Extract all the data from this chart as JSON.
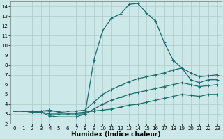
{
  "bg_color": "#cce8e8",
  "grid_color": "#aacccc",
  "line_color": "#1a6b6b",
  "xlabel": "Humidex (Indice chaleur)",
  "xlim": [
    -0.5,
    23.5
  ],
  "ylim": [
    2,
    14.5
  ],
  "xticks": [
    0,
    1,
    2,
    3,
    4,
    5,
    6,
    7,
    8,
    9,
    10,
    11,
    12,
    13,
    14,
    15,
    16,
    17,
    18,
    19,
    20,
    21,
    22,
    23
  ],
  "yticks": [
    2,
    3,
    4,
    5,
    6,
    7,
    8,
    9,
    10,
    11,
    12,
    13,
    14
  ],
  "curve_top": {
    "x": [
      0,
      1,
      2,
      3,
      4,
      5,
      6,
      7,
      8,
      9,
      10,
      11,
      12,
      13,
      14,
      15,
      16,
      17,
      18,
      19,
      20,
      21,
      22,
      23
    ],
    "y": [
      3.3,
      3.3,
      3.2,
      3.2,
      2.8,
      2.7,
      2.7,
      2.7,
      3.0,
      8.5,
      11.5,
      12.8,
      13.2,
      14.2,
      14.3,
      13.3,
      12.5,
      10.3,
      8.5,
      7.7,
      6.5,
      6.2,
      6.5,
      6.5
    ]
  },
  "curve_mid_upper": {
    "x": [
      0,
      1,
      2,
      3,
      4,
      5,
      6,
      7,
      8,
      9,
      10,
      11,
      12,
      13,
      14,
      15,
      16,
      17,
      18,
      19,
      20,
      21,
      22,
      23
    ],
    "y": [
      3.3,
      3.3,
      3.3,
      3.3,
      3.3,
      3.3,
      3.3,
      3.3,
      3.4,
      4.2,
      5.0,
      5.5,
      5.9,
      6.3,
      6.6,
      6.8,
      7.0,
      7.2,
      7.5,
      7.7,
      7.2,
      6.8,
      6.9,
      7.0
    ]
  },
  "curve_mid_lower": {
    "x": [
      0,
      1,
      2,
      3,
      4,
      5,
      6,
      7,
      8,
      9,
      10,
      11,
      12,
      13,
      14,
      15,
      16,
      17,
      18,
      19,
      20,
      21,
      22,
      23
    ],
    "y": [
      3.3,
      3.3,
      3.2,
      3.2,
      3.0,
      3.0,
      3.0,
      3.0,
      3.0,
      3.5,
      4.0,
      4.4,
      4.7,
      5.0,
      5.2,
      5.4,
      5.6,
      5.8,
      6.0,
      6.2,
      6.0,
      5.8,
      5.9,
      6.0
    ]
  },
  "curve_bottom": {
    "x": [
      0,
      1,
      2,
      3,
      4,
      5,
      6,
      7,
      8,
      9,
      10,
      11,
      12,
      13,
      14,
      15,
      16,
      17,
      18,
      19,
      20,
      21,
      22,
      23
    ],
    "y": [
      3.3,
      3.3,
      3.2,
      3.3,
      3.4,
      3.2,
      3.1,
      3.1,
      3.2,
      3.3,
      3.4,
      3.5,
      3.7,
      3.9,
      4.0,
      4.2,
      4.4,
      4.6,
      4.8,
      5.0,
      4.9,
      4.8,
      5.0,
      5.0
    ]
  },
  "tick_fontsize": 5,
  "xlabel_fontsize": 6.5,
  "linewidth": 0.9,
  "markersize": 2.5
}
